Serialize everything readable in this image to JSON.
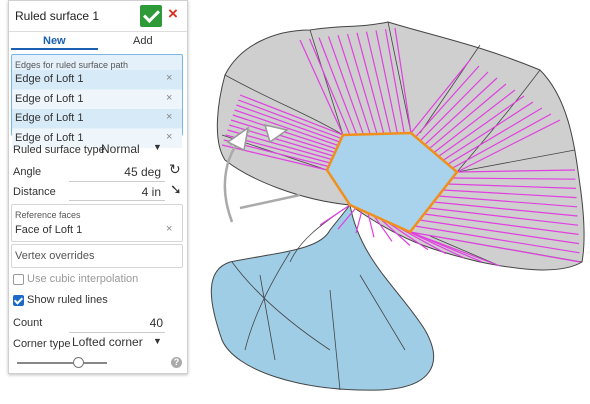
{
  "dialog": {
    "title": "Ruled surface 1",
    "tabs": [
      "New",
      "Add"
    ],
    "edges": {
      "label": "Edges for ruled surface path",
      "items": [
        "Edge of Loft 1",
        "Edge of Loft 1",
        "Edge of Loft 1",
        "Edge of Loft 1"
      ]
    },
    "type_label": "Ruled surface type",
    "type_value": "Normal",
    "angle_label": "Angle",
    "angle_value": "45 deg",
    "distance_label": "Distance",
    "distance_value": "4 in",
    "reference": {
      "label": "Reference faces",
      "items": [
        "Face of Loft 1"
      ]
    },
    "vertex_overrides": "Vertex overrides",
    "cubic": {
      "label": "Use cubic interpolation",
      "checked": false
    },
    "show_ruled": {
      "label": "Show ruled lines",
      "checked": true
    },
    "count_label": "Count",
    "count_value": "40",
    "corner_label": "Corner type",
    "corner_value": "Lofted corner"
  }
}
